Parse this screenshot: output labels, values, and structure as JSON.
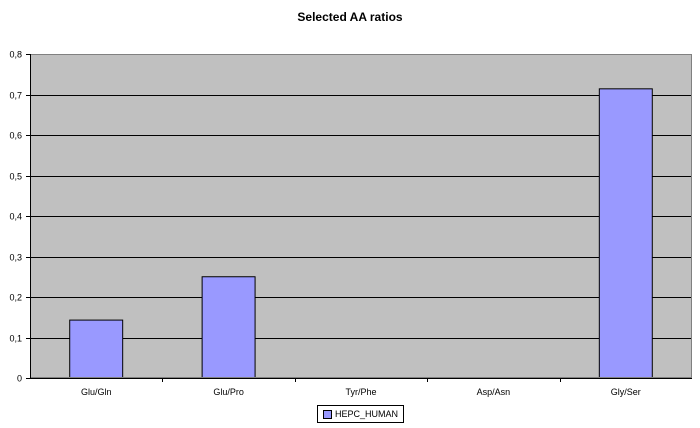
{
  "colors": {
    "plot_bg": "#c0c0c0",
    "bar": "#9999ff",
    "bar_edge": "#000000",
    "grid": "#000000"
  },
  "chart_data": {
    "type": "bar",
    "title": "Selected AA ratios",
    "categories": [
      "Glu/Gln",
      "Glu/Pro",
      "Tyr/Phe",
      "Asp/Asn",
      "Gly/Ser"
    ],
    "series": [
      {
        "name": "HEPC_HUMAN",
        "values": [
          0.143,
          0.25,
          0,
          0,
          0.714
        ]
      }
    ],
    "ylim": [
      0,
      0.8
    ],
    "yticks": [
      0,
      0.1,
      0.2,
      0.3,
      0.4,
      0.5,
      0.6,
      0.7,
      0.8
    ],
    "ytick_labels": [
      "0",
      "0,1",
      "0,2",
      "0,3",
      "0,4",
      "0,5",
      "0,6",
      "0,7",
      "0,8"
    ],
    "xlabel": "",
    "ylabel": "",
    "grid": true,
    "legend_position": "bottom"
  }
}
